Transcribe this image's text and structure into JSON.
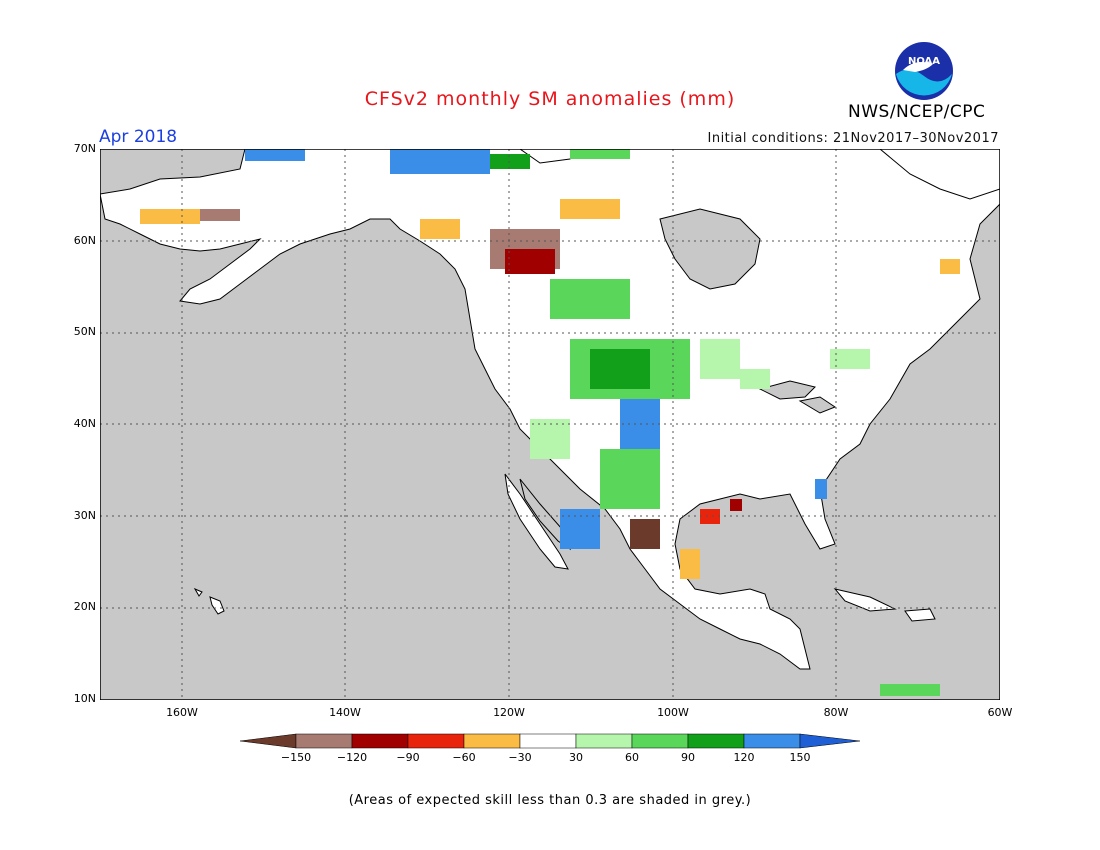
{
  "header": {
    "title": "CFSv2 monthly SM anomalies (mm)",
    "month": "Apr 2018",
    "initial_conditions": "Initial conditions: 21Nov2017–30Nov2017",
    "organization": "NWS/NCEP/CPC",
    "logo_text": "NOAA"
  },
  "map": {
    "lat_labels": [
      "70N",
      "60N",
      "50N",
      "40N",
      "30N",
      "20N",
      "10N"
    ],
    "lon_labels": [
      "160W",
      "140W",
      "120W",
      "100W",
      "80W",
      "60W"
    ],
    "colors": {
      "ocean": "#c8c8c8",
      "land": "#ffffff",
      "coast": "#000000",
      "grid": "#555555"
    }
  },
  "colorbar": {
    "labels": [
      "−150",
      "−120",
      "−90",
      "−60",
      "−30",
      "30",
      "60",
      "90",
      "120",
      "150"
    ],
    "colors": [
      "#6b3a2a",
      "#a87b72",
      "#a00000",
      "#e8240c",
      "#fbbc45",
      "#ffffff",
      "#b6f5ac",
      "#5ad65a",
      "#12a01a",
      "#3a8ee8",
      "#1f5fd6"
    ]
  },
  "footnote": "(Areas of expected skill less than 0.3 are shaded in grey.)"
}
